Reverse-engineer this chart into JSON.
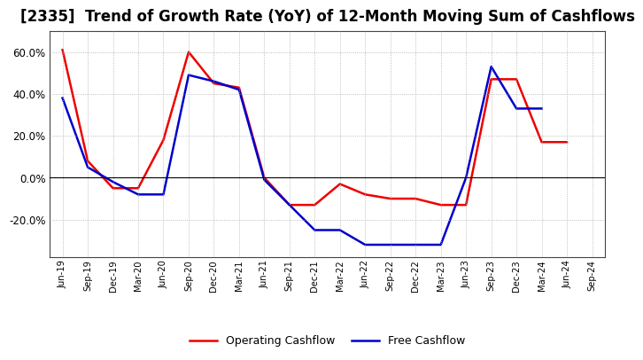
{
  "title": "[2335]  Trend of Growth Rate (YoY) of 12-Month Moving Sum of Cashflows",
  "labels": [
    "Jun-19",
    "Sep-19",
    "Dec-19",
    "Mar-20",
    "Jun-20",
    "Sep-20",
    "Dec-20",
    "Mar-21",
    "Jun-21",
    "Sep-21",
    "Dec-21",
    "Mar-22",
    "Jun-22",
    "Sep-22",
    "Dec-22",
    "Mar-23",
    "Jun-23",
    "Sep-23",
    "Dec-23",
    "Mar-24",
    "Jun-24",
    "Sep-24"
  ],
  "operating_cashflow": [
    0.61,
    0.08,
    -0.05,
    -0.05,
    0.18,
    0.6,
    0.45,
    0.43,
    0.0,
    -0.13,
    -0.13,
    -0.03,
    -0.08,
    -0.1,
    -0.1,
    -0.13,
    -0.13,
    0.47,
    0.47,
    0.17,
    0.17,
    null
  ],
  "free_cashflow": [
    0.38,
    0.05,
    -0.02,
    -0.08,
    -0.08,
    0.49,
    0.46,
    0.42,
    -0.01,
    -0.13,
    -0.25,
    -0.25,
    -0.32,
    -0.32,
    -0.32,
    -0.32,
    0.0,
    0.53,
    0.33,
    0.33,
    null,
    null
  ],
  "operating_color": "#EE0000",
  "free_color": "#0000CC",
  "background_color": "#FFFFFF",
  "yticks": [
    -0.2,
    0.0,
    0.2,
    0.4,
    0.6
  ],
  "ylim": [
    -0.38,
    0.7
  ],
  "title_fontsize": 12
}
